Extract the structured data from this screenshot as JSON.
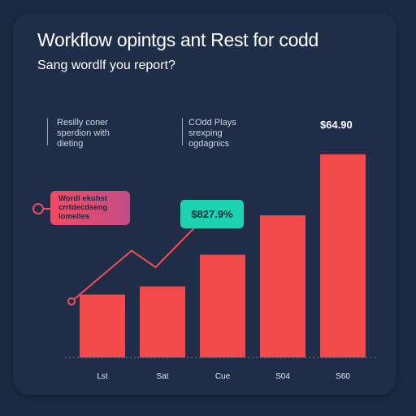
{
  "header": {
    "title": "Workflow opintgs ant Rest for codd",
    "subtitle": "Sang wordlf you report?"
  },
  "annotations": {
    "note_left": "Resilly coner\nsperdion with\ndieting",
    "note_mid": "COdd Plays\nsrexping\nogdagnics",
    "callout": "Wordl ekuhst\ncrrtdecdseng\nlomelles",
    "badge": "$827.9%",
    "top_value": "$64.90"
  },
  "colors": {
    "bar": "#f24a4a",
    "line": "#f05050",
    "badge": "#1ed3b2",
    "background": "#1f2d49"
  },
  "chart_data": {
    "type": "bar",
    "categories": [
      "Lst",
      "Sat",
      "Cue",
      "S04",
      "S60"
    ],
    "values": [
      15.5,
      17.5,
      25.3,
      35.0,
      50.0
    ],
    "ylim": [
      0,
      56
    ],
    "grid": false,
    "overlay_line": {
      "type": "line",
      "x": [
        0.2,
        1.2,
        1.6,
        2.3
      ],
      "values": [
        13.8,
        26.3,
        22.2,
        32.8
      ]
    }
  }
}
